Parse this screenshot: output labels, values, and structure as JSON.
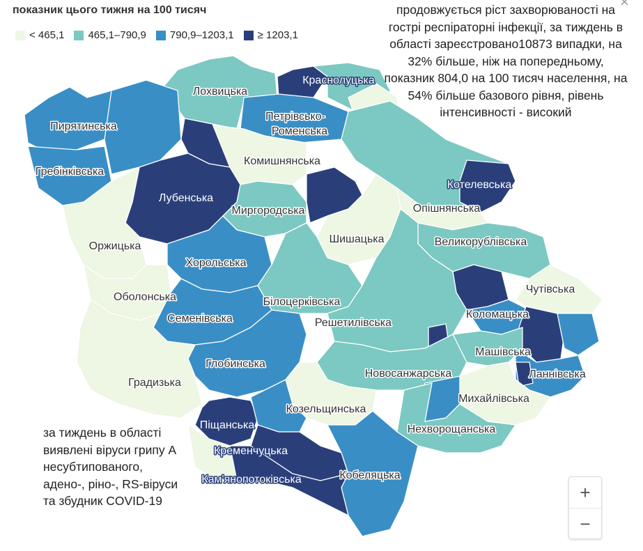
{
  "legend": {
    "title": "показник цього тижня на 100 тисяч",
    "items": [
      {
        "label": "< 465,1",
        "color": "#eef6e4"
      },
      {
        "label": "465,1–790,9",
        "color": "#7cc8c2"
      },
      {
        "label": "790,9–1203,1",
        "color": "#3a8ec6"
      },
      {
        "label": "≥ 1203,1",
        "color": "#2a3f7a"
      }
    ]
  },
  "note_right": "продовжується ріст захворюваності на гострі респіраторні інфекції, за тиждень в області зареєстровано10873 випадки, на 32% більше, ніж на попередньому, показник 804,0 на 100 тисяч населення, на 54% більше базового рівня, рівень інтенсивності - високий",
  "note_left": "за тиждень в області виявлені віруси грипу А несубтипованого, адено-, ріно-, RS-віруси та збудник COVID-19",
  "zoom": {
    "in": "+",
    "out": "−"
  },
  "regions": [
    {
      "name": "Лохвицька",
      "class": "b"
    },
    {
      "name": "Краснолуцька",
      "class": "d"
    },
    {
      "name": "Пирятинська",
      "class": "c"
    },
    {
      "name": "Петрівсько-",
      "class": "c"
    },
    {
      "name": "Роменська",
      "class": "c"
    },
    {
      "name": "Гребінківська",
      "class": "c"
    },
    {
      "name": "Комишнянська",
      "class": "a"
    },
    {
      "name": "Лубенська",
      "class": "d"
    },
    {
      "name": "Котелевська",
      "class": "d"
    },
    {
      "name": "Миргородська",
      "class": "c"
    },
    {
      "name": "Опішнянська",
      "class": "b"
    },
    {
      "name": "Оржицька",
      "class": "a"
    },
    {
      "name": "Шишацька",
      "class": "a"
    },
    {
      "name": "Великорублівська",
      "class": "b"
    },
    {
      "name": "Хорольська",
      "class": "c"
    },
    {
      "name": "Чутівська",
      "class": "a"
    },
    {
      "name": "Оболонська",
      "class": "a"
    },
    {
      "name": "Білоцерківська",
      "class": "b"
    },
    {
      "name": "Коломацька",
      "class": "c"
    },
    {
      "name": "Семенівська",
      "class": "c"
    },
    {
      "name": "Решетилівська",
      "class": "b"
    },
    {
      "name": "Машівська",
      "class": "b"
    },
    {
      "name": "Глобинська",
      "class": "c"
    },
    {
      "name": "Ланнівська",
      "class": "c"
    },
    {
      "name": "Новосанжарська",
      "class": "b"
    },
    {
      "name": "Градизька",
      "class": "a"
    },
    {
      "name": "Михайлівська",
      "class": "a"
    },
    {
      "name": "Козельщинська",
      "class": "a"
    },
    {
      "name": "Піщанська",
      "class": "d"
    },
    {
      "name": "Нехворощанська",
      "class": "b"
    },
    {
      "name": "Кременчуцька",
      "class": "d"
    },
    {
      "name": "Кобеляцька",
      "class": "c"
    },
    {
      "name": "Кам'янопотоківська",
      "class": "d"
    }
  ]
}
